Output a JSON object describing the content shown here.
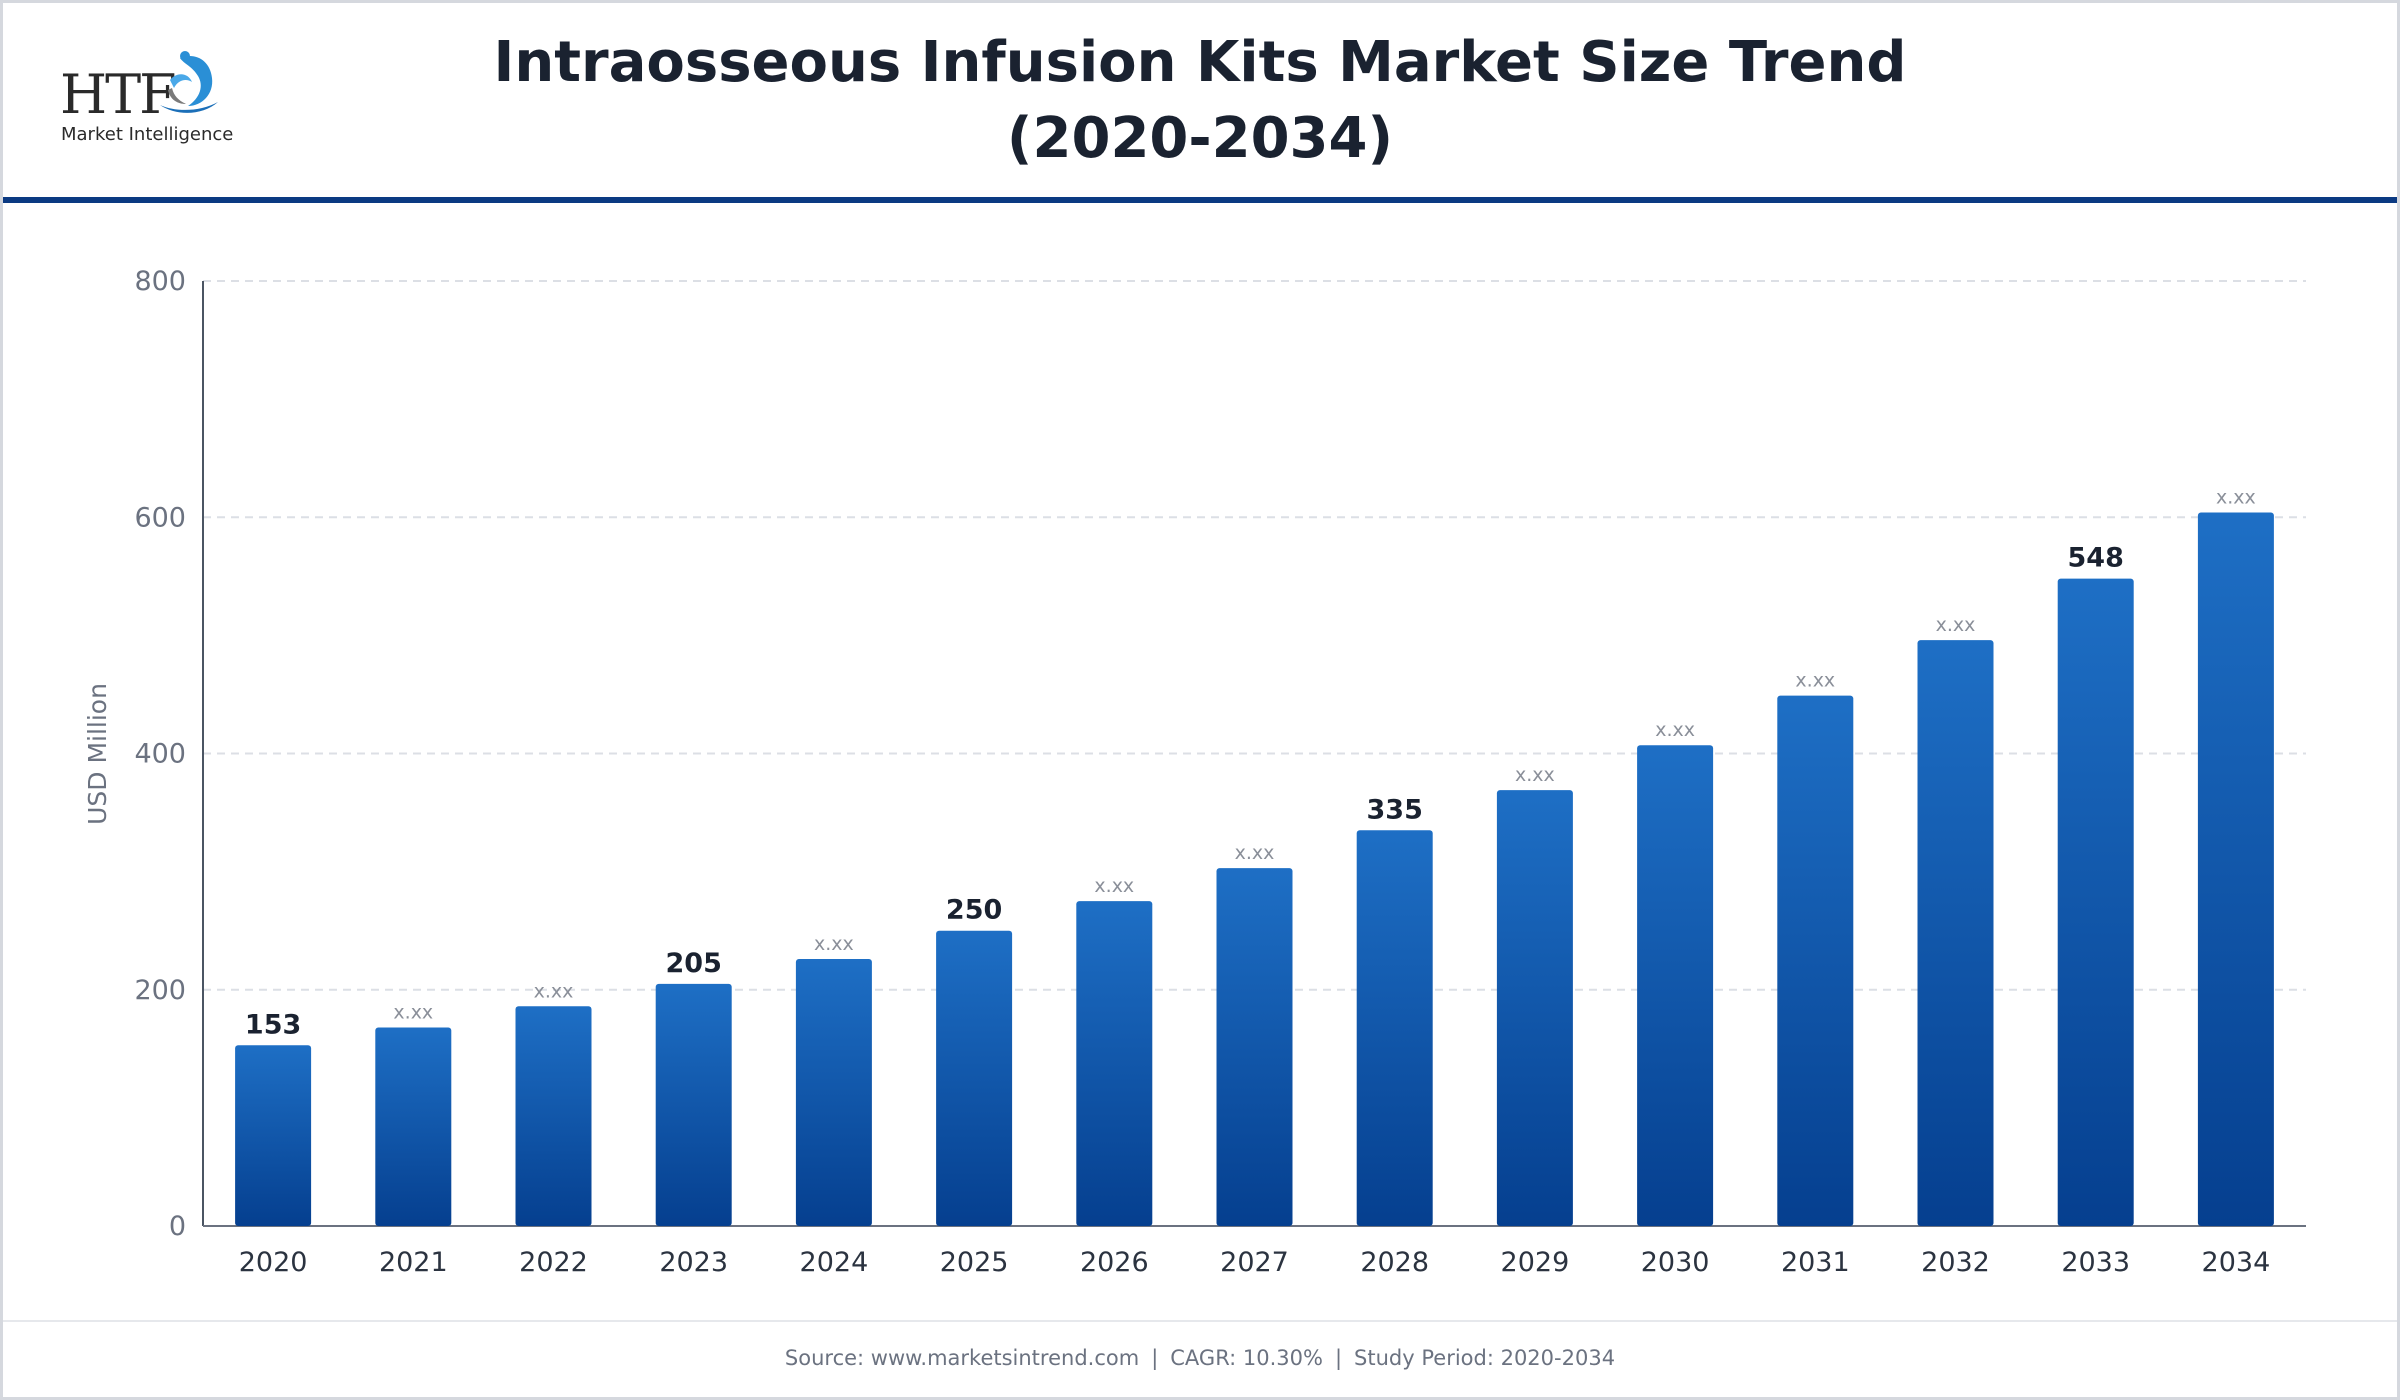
{
  "header": {
    "title_line1": "Intraosseous Infusion Kits Market Size Trend",
    "title_line2": "(2020-2034)"
  },
  "logo": {
    "text": "HTF",
    "subtext": "Market Intelligence",
    "icon": "htf-logo-mark"
  },
  "colors": {
    "bar_top": "#1e6fc5",
    "bar_bottom": "#053f8f",
    "header_rule": "#0b3a82",
    "label_strong": "#1a2230",
    "label_placeholder": "#8a8f99",
    "axis": "#6b7280",
    "grid": "#dcdfe5"
  },
  "chart_data": {
    "type": "bar",
    "title": "Intraosseous Infusion Kits Market Size Trend (2020-2034)",
    "xlabel": "",
    "ylabel": "USD Million",
    "ylim": [
      0,
      800
    ],
    "yticks": [
      0,
      200,
      400,
      600,
      800
    ],
    "grid": true,
    "legend": "none",
    "categories": [
      "2020",
      "2021",
      "2022",
      "2023",
      "2024",
      "2025",
      "2026",
      "2027",
      "2028",
      "2029",
      "2030",
      "2031",
      "2032",
      "2033",
      "2034"
    ],
    "values": [
      153,
      168,
      186,
      205,
      226,
      250,
      275,
      303,
      335,
      369,
      407,
      449,
      496,
      548,
      604
    ],
    "data_labels": [
      "153",
      "x.xx",
      "x.xx",
      "205",
      "x.xx",
      "250",
      "x.xx",
      "x.xx",
      "335",
      "x.xx",
      "x.xx",
      "x.xx",
      "x.xx",
      "548",
      "x.xx"
    ],
    "label_emphasis": [
      true,
      false,
      false,
      true,
      false,
      true,
      false,
      false,
      true,
      false,
      false,
      false,
      false,
      true,
      false
    ]
  },
  "footer": {
    "source": "Source: www.marketsintrend.com",
    "cagr": "CAGR: 10.30%",
    "period": "Study Period: 2020-2034",
    "separator": "|"
  }
}
